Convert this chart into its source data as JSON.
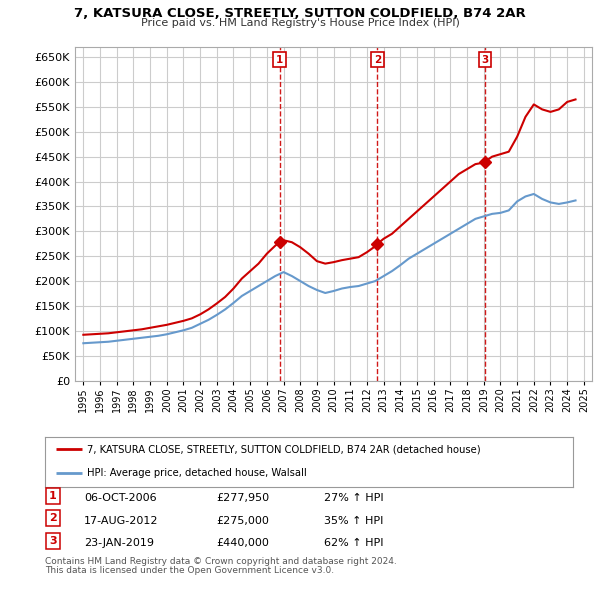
{
  "title": "7, KATSURA CLOSE, STREETLY, SUTTON COLDFIELD, B74 2AR",
  "subtitle": "Price paid vs. HM Land Registry's House Price Index (HPI)",
  "property_label": "7, KATSURA CLOSE, STREETLY, SUTTON COLDFIELD, B74 2AR (detached house)",
  "hpi_label": "HPI: Average price, detached house, Walsall",
  "footnote1": "Contains HM Land Registry data © Crown copyright and database right 2024.",
  "footnote2": "This data is licensed under the Open Government Licence v3.0.",
  "transactions": [
    {
      "num": 1,
      "date": "06-OCT-2006",
      "price": "£277,950",
      "hpi_pct": "27% ↑ HPI",
      "year": 2006.77
    },
    {
      "num": 2,
      "date": "17-AUG-2012",
      "price": "£275,000",
      "hpi_pct": "35% ↑ HPI",
      "year": 2012.63
    },
    {
      "num": 3,
      "date": "23-JAN-2019",
      "price": "£440,000",
      "hpi_pct": "62% ↑ HPI",
      "year": 2019.07
    }
  ],
  "property_line_color": "#cc0000",
  "hpi_line_color": "#6699cc",
  "transaction_marker_color": "#cc0000",
  "vline_color": "#cc0000",
  "grid_color": "#cccccc",
  "bg_color": "#ffffff",
  "ylim": [
    0,
    670000
  ],
  "yticks": [
    0,
    50000,
    100000,
    150000,
    200000,
    250000,
    300000,
    350000,
    400000,
    450000,
    500000,
    550000,
    600000,
    650000
  ],
  "xlim": [
    1994.5,
    2025.5
  ],
  "property_x": [
    1995.0,
    1995.5,
    1996.0,
    1996.5,
    1997.0,
    1997.5,
    1998.0,
    1998.5,
    1999.0,
    1999.5,
    2000.0,
    2000.5,
    2001.0,
    2001.5,
    2002.0,
    2002.5,
    2003.0,
    2003.5,
    2004.0,
    2004.5,
    2005.0,
    2005.5,
    2006.0,
    2006.5,
    2006.77,
    2007.0,
    2007.5,
    2008.0,
    2008.5,
    2009.0,
    2009.5,
    2010.0,
    2010.5,
    2011.0,
    2011.5,
    2012.0,
    2012.5,
    2012.63,
    2013.0,
    2013.5,
    2014.0,
    2014.5,
    2015.0,
    2015.5,
    2016.0,
    2016.5,
    2017.0,
    2017.5,
    2018.0,
    2018.5,
    2019.0,
    2019.07,
    2019.5,
    2020.0,
    2020.5,
    2021.0,
    2021.5,
    2022.0,
    2022.5,
    2023.0,
    2023.5,
    2024.0,
    2024.5
  ],
  "property_y": [
    92000,
    93000,
    94000,
    95000,
    97000,
    99000,
    101000,
    103000,
    106000,
    109000,
    112000,
    116000,
    120000,
    125000,
    133000,
    143000,
    155000,
    168000,
    185000,
    205000,
    220000,
    235000,
    255000,
    271000,
    277950,
    282000,
    278000,
    268000,
    255000,
    240000,
    235000,
    238000,
    242000,
    245000,
    248000,
    258000,
    270000,
    275000,
    285000,
    295000,
    310000,
    325000,
    340000,
    355000,
    370000,
    385000,
    400000,
    415000,
    425000,
    435000,
    438000,
    440000,
    450000,
    455000,
    460000,
    490000,
    530000,
    555000,
    545000,
    540000,
    545000,
    560000,
    565000
  ],
  "hpi_x": [
    1995.0,
    1995.5,
    1996.0,
    1996.5,
    1997.0,
    1997.5,
    1998.0,
    1998.5,
    1999.0,
    1999.5,
    2000.0,
    2000.5,
    2001.0,
    2001.5,
    2002.0,
    2002.5,
    2003.0,
    2003.5,
    2004.0,
    2004.5,
    2005.0,
    2005.5,
    2006.0,
    2006.5,
    2007.0,
    2007.5,
    2008.0,
    2008.5,
    2009.0,
    2009.5,
    2010.0,
    2010.5,
    2011.0,
    2011.5,
    2012.0,
    2012.5,
    2013.0,
    2013.5,
    2014.0,
    2014.5,
    2015.0,
    2015.5,
    2016.0,
    2016.5,
    2017.0,
    2017.5,
    2018.0,
    2018.5,
    2019.0,
    2019.5,
    2020.0,
    2020.5,
    2021.0,
    2021.5,
    2022.0,
    2022.5,
    2023.0,
    2023.5,
    2024.0,
    2024.5
  ],
  "hpi_y": [
    75000,
    76000,
    77000,
    78000,
    80000,
    82000,
    84000,
    86000,
    88000,
    90000,
    93000,
    97000,
    101000,
    106000,
    114000,
    122000,
    132000,
    143000,
    156000,
    170000,
    180000,
    190000,
    200000,
    210000,
    218000,
    210000,
    200000,
    190000,
    182000,
    176000,
    180000,
    185000,
    188000,
    190000,
    195000,
    200000,
    210000,
    220000,
    232000,
    245000,
    255000,
    265000,
    275000,
    285000,
    295000,
    305000,
    315000,
    325000,
    330000,
    335000,
    337000,
    342000,
    360000,
    370000,
    375000,
    365000,
    358000,
    355000,
    358000,
    362000
  ]
}
